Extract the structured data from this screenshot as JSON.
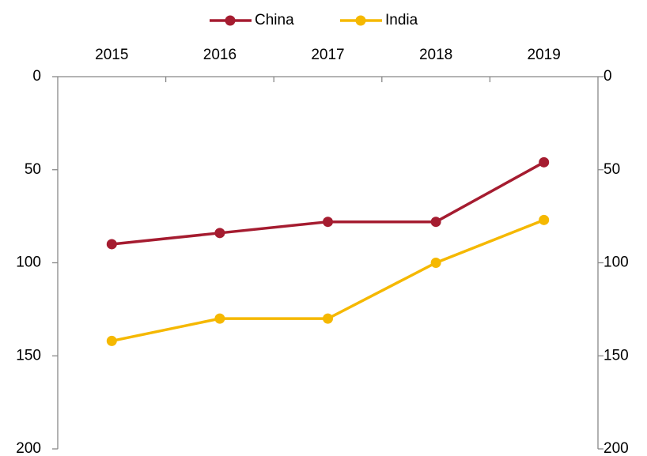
{
  "chart_data": {
    "type": "line",
    "categories": [
      "2015",
      "2016",
      "2017",
      "2018",
      "2019"
    ],
    "series": [
      {
        "name": "China",
        "color": "#a51c30",
        "values": [
          90,
          84,
          78,
          78,
          46
        ]
      },
      {
        "name": "India",
        "color": "#f5b800",
        "values": [
          142,
          130,
          130,
          100,
          77
        ]
      }
    ],
    "ylim": [
      0,
      200
    ],
    "yticks": [
      0,
      50,
      100,
      150,
      200
    ],
    "y2lim": [
      0,
      200
    ],
    "y2ticks": [
      0,
      50,
      100,
      150,
      200
    ],
    "y_inverted": true,
    "x_axis_position": "top",
    "legend": "top",
    "grid": false
  }
}
